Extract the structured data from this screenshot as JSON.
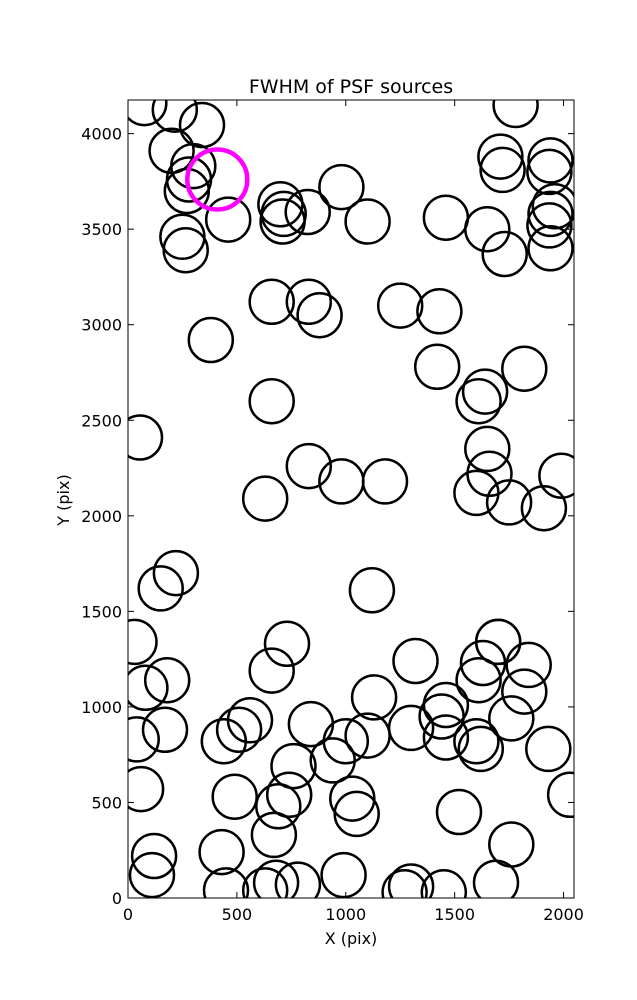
{
  "chart_data": {
    "type": "scatter",
    "title": "FWHM of PSF sources",
    "xlabel": "X (pix)",
    "ylabel": "Y (pix)",
    "xlim": [
      0,
      2048
    ],
    "ylim": [
      0,
      4176
    ],
    "xticks": [
      0,
      500,
      1000,
      1500,
      2000
    ],
    "yticks": [
      0,
      500,
      1000,
      1500,
      2000,
      2500,
      3000,
      3500,
      4000
    ],
    "grid": false,
    "marker": "open circle",
    "point_color": "#000000",
    "highlight_color": "#ff00ff",
    "points": [
      [
        75,
        4160
      ],
      [
        215,
        4125
      ],
      [
        340,
        4045
      ],
      [
        200,
        3910
      ],
      [
        300,
        3830
      ],
      [
        280,
        3760
      ],
      [
        270,
        3700
      ],
      [
        250,
        3460
      ],
      [
        265,
        3390
      ],
      [
        460,
        3550
      ],
      [
        700,
        3630
      ],
      [
        715,
        3580
      ],
      [
        710,
        3540
      ],
      [
        825,
        3590
      ],
      [
        980,
        3720
      ],
      [
        1100,
        3540
      ],
      [
        1460,
        3560
      ],
      [
        1650,
        3500
      ],
      [
        1730,
        3370
      ],
      [
        1710,
        3880
      ],
      [
        1720,
        3810
      ],
      [
        1940,
        3860
      ],
      [
        1935,
        3800
      ],
      [
        1960,
        3620
      ],
      [
        1940,
        3580
      ],
      [
        1935,
        3520
      ],
      [
        1940,
        3400
      ],
      [
        1780,
        4150
      ],
      [
        660,
        3120
      ],
      [
        830,
        3120
      ],
      [
        880,
        3050
      ],
      [
        1250,
        3100
      ],
      [
        1430,
        3070
      ],
      [
        380,
        2920
      ],
      [
        1420,
        2780
      ],
      [
        1640,
        2650
      ],
      [
        1610,
        2600
      ],
      [
        1820,
        2770
      ],
      [
        660,
        2600
      ],
      [
        55,
        2410
      ],
      [
        1650,
        2350
      ],
      [
        1660,
        2220
      ],
      [
        1600,
        2120
      ],
      [
        1750,
        2070
      ],
      [
        1910,
        2040
      ],
      [
        1990,
        2210
      ],
      [
        830,
        2260
      ],
      [
        980,
        2180
      ],
      [
        1180,
        2180
      ],
      [
        630,
        2090
      ],
      [
        220,
        1700
      ],
      [
        150,
        1620
      ],
      [
        1120,
        1610
      ],
      [
        30,
        1340
      ],
      [
        730,
        1330
      ],
      [
        660,
        1190
      ],
      [
        180,
        1140
      ],
      [
        80,
        1100
      ],
      [
        40,
        830
      ],
      [
        170,
        880
      ],
      [
        560,
        930
      ],
      [
        510,
        880
      ],
      [
        440,
        820
      ],
      [
        840,
        910
      ],
      [
        1000,
        820
      ],
      [
        1100,
        850
      ],
      [
        1130,
        1050
      ],
      [
        940,
        720
      ],
      [
        760,
        690
      ],
      [
        1320,
        1240
      ],
      [
        1300,
        890
      ],
      [
        1440,
        950
      ],
      [
        1460,
        1010
      ],
      [
        1460,
        840
      ],
      [
        1630,
        1230
      ],
      [
        1610,
        1140
      ],
      [
        1600,
        820
      ],
      [
        1620,
        780
      ],
      [
        1700,
        1340
      ],
      [
        1840,
        1220
      ],
      [
        1820,
        1080
      ],
      [
        1760,
        940
      ],
      [
        1930,
        780
      ],
      [
        60,
        570
      ],
      [
        490,
        530
      ],
      [
        690,
        480
      ],
      [
        740,
        540
      ],
      [
        1030,
        520
      ],
      [
        1050,
        440
      ],
      [
        1520,
        450
      ],
      [
        2030,
        540
      ],
      [
        670,
        330
      ],
      [
        430,
        240
      ],
      [
        120,
        220
      ],
      [
        110,
        120
      ],
      [
        450,
        40
      ],
      [
        630,
        40
      ],
      [
        680,
        80
      ],
      [
        780,
        70
      ],
      [
        990,
        120
      ],
      [
        1300,
        60
      ],
      [
        1270,
        30
      ],
      [
        1450,
        30
      ],
      [
        1690,
        80
      ],
      [
        1760,
        280
      ],
      [
        1700,
        1340
      ]
    ],
    "highlight_point": [
      410,
      3760
    ]
  }
}
